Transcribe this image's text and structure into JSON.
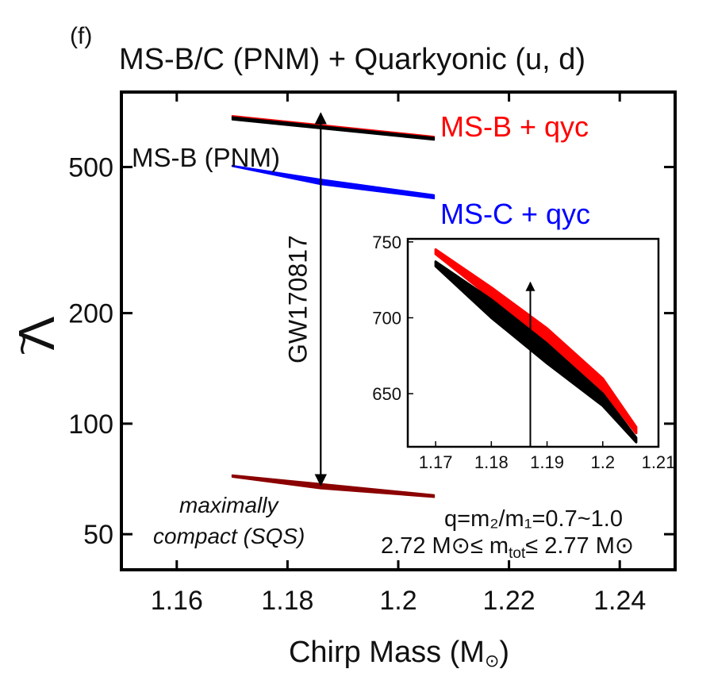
{
  "panel_label": "(f)",
  "title": "MS-B/C (PNM) + Quarkyonic (u, d)",
  "chart_data": {
    "type": "area",
    "xlabel": "Chirp Mass (M",
    "xlabel_unit_symbol": "⊙",
    "xlabel_close": ")",
    "ylabel": "Λ",
    "ylabel_accent": "~",
    "yscale": "log",
    "xlim": [
      1.15,
      1.25
    ],
    "ylim": [
      40,
      800
    ],
    "x_ticks": [
      1.16,
      1.18,
      1.2,
      1.22,
      1.24
    ],
    "x_tick_labels": [
      "1.16",
      "1.18",
      "1.2",
      "1.22",
      "1.24"
    ],
    "y_ticks": [
      50,
      100,
      200,
      500
    ],
    "y_tick_labels": [
      "50",
      "100",
      "200",
      "500"
    ],
    "series": [
      {
        "name": "MS-B + qyc",
        "color": "#ff0000",
        "upper": [
          [
            1.17,
            690
          ],
          [
            1.2065,
            606
          ]
        ],
        "lower": [
          [
            1.17,
            683
          ],
          [
            1.2065,
            598
          ]
        ]
      },
      {
        "name": "MS-C + qyc",
        "color": "#0000ff",
        "upper": [
          [
            1.17,
            505
          ],
          [
            1.186,
            463
          ],
          [
            1.2065,
            420
          ]
        ],
        "lower": [
          [
            1.17,
            502
          ],
          [
            1.186,
            448
          ],
          [
            1.2065,
            410
          ]
        ]
      },
      {
        "name": "MS-B (PNM)",
        "color": "#000000",
        "upper": [
          [
            1.17,
            685
          ],
          [
            1.2065,
            602
          ]
        ],
        "lower": [
          [
            1.17,
            672
          ],
          [
            1.2065,
            592
          ]
        ]
      },
      {
        "name": "maximally compact (SQS)",
        "color": "#8b0000",
        "upper": [
          [
            1.17,
            72.5
          ],
          [
            1.2065,
            64
          ]
        ],
        "lower": [
          [
            1.17,
            71.5
          ],
          [
            1.186,
            66.5
          ],
          [
            1.2065,
            63
          ]
        ]
      }
    ],
    "annotations": {
      "ms_b_qyc": "MS-B + qyc",
      "ms_c_qyc": "MS-C + qyc",
      "ms_b_pnm": "MS-B (PNM)",
      "gw_event": "GW170817",
      "gw_x": 1.186,
      "gw_range": [
        68,
        700
      ],
      "sqs_line1": "maximally",
      "sqs_line2": "compact (SQS)",
      "q_range": "q=m₂/m₁=0.7~1.0",
      "mtot_range": "2.72 M⊙≤ m",
      "mtot_sub": "tot",
      "mtot_range_end": "≤ 2.77 M⊙"
    },
    "inset": {
      "type": "area",
      "xlim": [
        1.165,
        1.21
      ],
      "ylim": [
        615,
        752
      ],
      "x_ticks": [
        1.17,
        1.18,
        1.19,
        1.2,
        1.21
      ],
      "x_tick_labels": [
        "1.17",
        "1.18",
        "1.19",
        "1.2",
        "1.21"
      ],
      "y_ticks": [
        650,
        700,
        750
      ],
      "y_tick_labels": [
        "650",
        "700",
        "750"
      ],
      "gw_x": 1.187,
      "series": [
        {
          "name": "MS-B + qyc",
          "color": "#ff0000",
          "upper": [
            [
              1.17,
              745
            ],
            [
              1.18,
              720
            ],
            [
              1.19,
              693
            ],
            [
              1.2,
              660
            ],
            [
              1.206,
              628
            ]
          ],
          "lower": [
            [
              1.17,
              742
            ],
            [
              1.18,
              713
            ],
            [
              1.19,
              685
            ],
            [
              1.2,
              652
            ],
            [
              1.206,
              624
            ]
          ]
        },
        {
          "name": "MS-B (PNM)",
          "color": "#000000",
          "upper": [
            [
              1.17,
              737
            ],
            [
              1.18,
              712
            ],
            [
              1.19,
              683
            ],
            [
              1.2,
              650
            ],
            [
              1.206,
              621
            ]
          ],
          "lower": [
            [
              1.17,
              734
            ],
            [
              1.18,
              700
            ],
            [
              1.19,
              670
            ],
            [
              1.2,
              642
            ],
            [
              1.206,
              618
            ]
          ]
        }
      ]
    }
  }
}
